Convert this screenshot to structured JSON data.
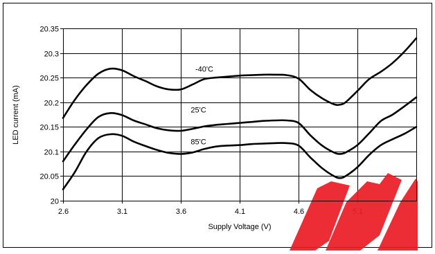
{
  "chart_data": {
    "type": "line",
    "xlabel": "Supply Voltage (V)",
    "ylabel": "LED current (mA)",
    "xlim": [
      2.6,
      5.6
    ],
    "ylim": [
      20.0,
      20.35
    ],
    "x_ticks": [
      2.6,
      3.1,
      3.6,
      4.1,
      4.6,
      5.1
    ],
    "x_tick_labels": [
      "2.6",
      "3.1",
      "3.6",
      "4.1",
      "4.6",
      "5.1"
    ],
    "y_ticks": [
      20.0,
      20.05,
      20.1,
      20.15,
      20.2,
      20.25,
      20.3,
      20.35
    ],
    "y_tick_labels": [
      "20",
      "20.05",
      "20.1",
      "20.15",
      "20.2",
      "20.25",
      "20.3",
      "20.35"
    ],
    "grid": "both",
    "legend": "none",
    "series": [
      {
        "name": "-40'C",
        "x": [
          2.6,
          2.7,
          2.8,
          2.9,
          3.0,
          3.1,
          3.2,
          3.3,
          3.4,
          3.5,
          3.6,
          3.7,
          3.8,
          3.9,
          4.0,
          4.1,
          4.2,
          4.3,
          4.4,
          4.5,
          4.6,
          4.7,
          4.8,
          4.9,
          4.95,
          5.0,
          5.1,
          5.2,
          5.3,
          5.4,
          5.5,
          5.6
        ],
        "values": [
          20.168,
          20.205,
          20.235,
          20.258,
          20.268,
          20.265,
          20.253,
          20.243,
          20.232,
          20.226,
          20.226,
          20.236,
          20.247,
          20.25,
          20.252,
          20.254,
          20.255,
          20.256,
          20.256,
          20.255,
          20.248,
          20.225,
          20.208,
          20.196,
          20.195,
          20.2,
          20.223,
          20.247,
          20.262,
          20.28,
          20.303,
          20.33
        ]
      },
      {
        "name": "25'C",
        "x": [
          2.6,
          2.7,
          2.8,
          2.9,
          3.0,
          3.1,
          3.2,
          3.3,
          3.4,
          3.5,
          3.6,
          3.7,
          3.8,
          3.9,
          4.0,
          4.1,
          4.2,
          4.3,
          4.4,
          4.5,
          4.6,
          4.7,
          4.8,
          4.9,
          4.95,
          5.0,
          5.1,
          5.2,
          5.3,
          5.4,
          5.5,
          5.6
        ],
        "values": [
          20.08,
          20.114,
          20.145,
          20.17,
          20.178,
          20.174,
          20.163,
          20.155,
          20.147,
          20.143,
          20.142,
          20.146,
          20.151,
          20.154,
          20.156,
          20.158,
          20.16,
          20.162,
          20.163,
          20.163,
          20.158,
          20.133,
          20.112,
          20.098,
          20.095,
          20.098,
          20.113,
          20.137,
          20.162,
          20.175,
          20.192,
          20.21
        ]
      },
      {
        "name": "85'C",
        "x": [
          2.6,
          2.7,
          2.8,
          2.9,
          3.0,
          3.1,
          3.2,
          3.3,
          3.4,
          3.5,
          3.6,
          3.7,
          3.8,
          3.9,
          4.0,
          4.1,
          4.2,
          4.3,
          4.4,
          4.5,
          4.6,
          4.7,
          4.8,
          4.9,
          4.95,
          5.0,
          5.1,
          5.2,
          5.3,
          5.4,
          5.5,
          5.6
        ],
        "values": [
          20.023,
          20.058,
          20.1,
          20.127,
          20.135,
          20.132,
          20.12,
          20.111,
          20.103,
          20.097,
          20.095,
          20.098,
          20.105,
          20.11,
          20.112,
          20.113,
          20.115,
          20.116,
          20.117,
          20.117,
          20.112,
          20.088,
          20.066,
          20.05,
          20.046,
          20.05,
          20.068,
          20.093,
          20.113,
          20.125,
          20.136,
          20.15
        ]
      }
    ],
    "annotations": [
      {
        "text": "-40'C",
        "x": 3.8,
        "y": 20.268
      },
      {
        "text": "25'C",
        "x": 3.75,
        "y": 20.185
      },
      {
        "text": "85'C",
        "x": 3.75,
        "y": 20.12
      }
    ]
  }
}
